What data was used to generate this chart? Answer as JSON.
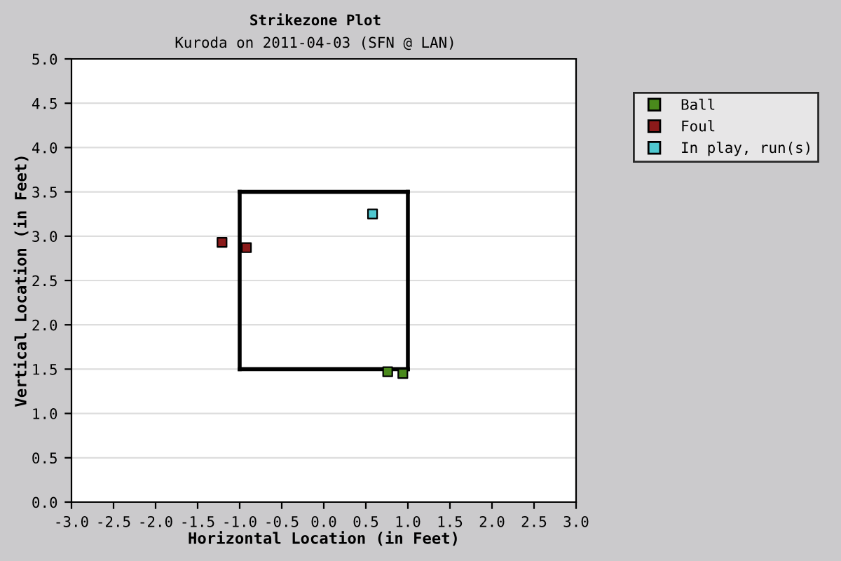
{
  "chart_data": {
    "type": "scatter",
    "title": "Strikezone Plot",
    "subtitle": "Kuroda on 2011-04-03 (SFN @ LAN)",
    "xlabel": "Horizontal Location (in Feet)",
    "ylabel": "Vertical Location (in Feet)",
    "series": [
      {
        "name": "Ball",
        "color": "#4a8a1c",
        "x": [
          0.76,
          0.94
        ],
        "values": [
          1.47,
          1.45
        ]
      },
      {
        "name": "Foul",
        "color": "#8b1a1a",
        "x": [
          -1.21,
          -0.92
        ],
        "values": [
          2.93,
          2.87
        ]
      },
      {
        "name": "In play, run(s)",
        "color": "#4fc8d0",
        "x": [
          0.58
        ],
        "values": [
          3.25
        ]
      },
      {
        "type": "line",
        "marker": "none",
        "color": "#000000",
        "x": [
          -1,
          1
        ],
        "values": [
          1.5,
          1.5
        ]
      },
      {
        "type": "line",
        "marker": "none",
        "color": "#000000",
        "x": [
          -1,
          1
        ],
        "values": [
          3.5,
          3.5
        ]
      },
      {
        "type": "line",
        "marker": "none",
        "color": "#000000",
        "x": [
          -1,
          -1
        ],
        "values": [
          1.5,
          3.5
        ]
      },
      {
        "type": "line",
        "marker": "none",
        "color": "#000000",
        "x": [
          1,
          1
        ],
        "values": [
          1.5,
          3.5
        ]
      }
    ],
    "xlim": [
      -3,
      3
    ],
    "ylim": [
      0,
      5
    ],
    "xticks": [
      {
        "value": -3,
        "label": "-3.0"
      },
      {
        "value": -2.5,
        "label": "-2.5"
      },
      {
        "value": -2,
        "label": "-2.0"
      },
      {
        "value": -1.5,
        "label": "-1.5"
      },
      {
        "value": -1,
        "label": "-1.0"
      },
      {
        "value": -0.5,
        "label": "-0.5"
      },
      {
        "value": 0,
        "label": "0.0"
      },
      {
        "value": 0.5,
        "label": "0.5"
      },
      {
        "value": 1,
        "label": "1.0"
      },
      {
        "value": 1.5,
        "label": "1.5"
      },
      {
        "value": 2,
        "label": "2.0"
      },
      {
        "value": 2.5,
        "label": "2.5"
      },
      {
        "value": 3,
        "label": "3.0"
      }
    ],
    "yticks": [
      {
        "value": 0,
        "label": "0.0"
      },
      {
        "value": 0.5,
        "label": "0.5"
      },
      {
        "value": 1,
        "label": "1.0"
      },
      {
        "value": 1.5,
        "label": "1.5"
      },
      {
        "value": 2,
        "label": "2.0"
      },
      {
        "value": 2.5,
        "label": "2.5"
      },
      {
        "value": 3,
        "label": "3.0"
      },
      {
        "value": 3.5,
        "label": "3.5"
      },
      {
        "value": 4,
        "label": "4.0"
      },
      {
        "value": 4.5,
        "label": "4.5"
      },
      {
        "value": 5,
        "label": "5.0"
      }
    ],
    "grid": "y",
    "legend": "top right",
    "marker": "square"
  }
}
